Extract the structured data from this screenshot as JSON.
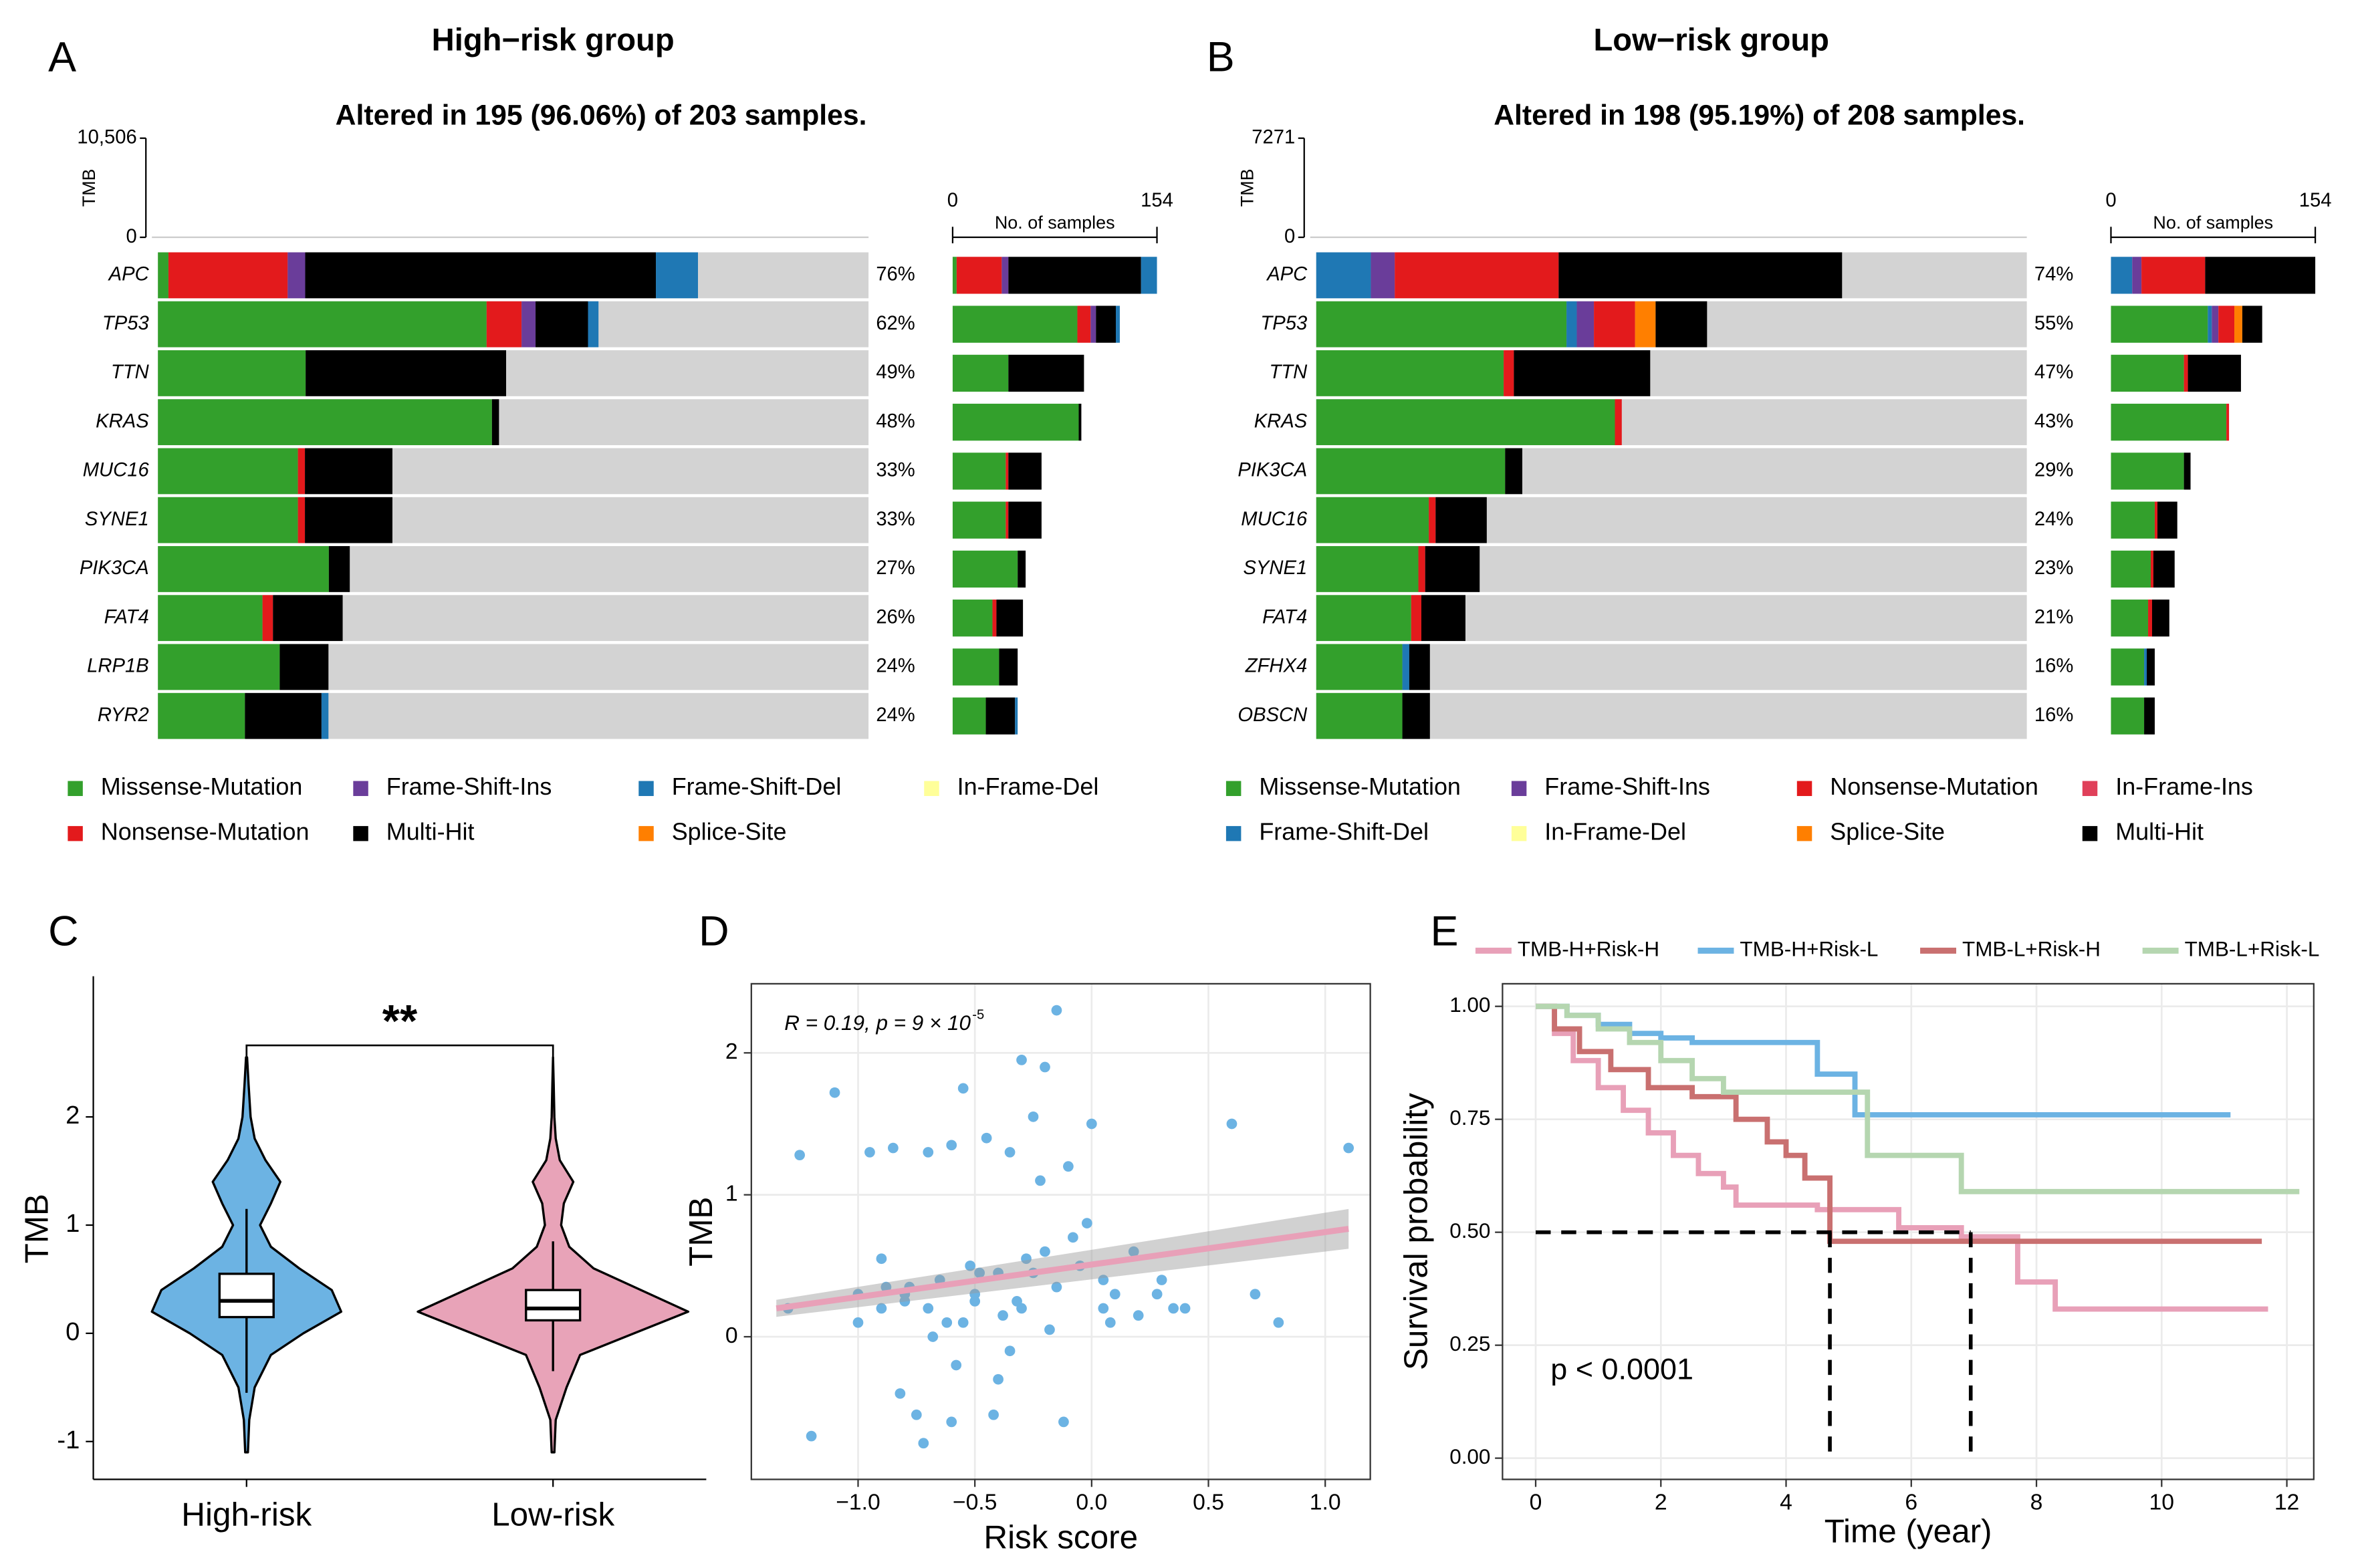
{
  "chart_data": [
    {
      "type": "oncoplot",
      "panel": "A",
      "title": "High−risk group",
      "subtitle": "Altered in 195 (96.06%) of 203 samples.",
      "tmb_label": "TMB",
      "tmb_ylim": [
        0,
        10506
      ],
      "tmb_yticks": [
        0,
        {
          "value": 10506,
          "label": "10,506"
        }
      ],
      "genes": [
        "APC",
        "TP53",
        "TTN",
        "KRAS",
        "MUC16",
        "SYNE1",
        "PIK3CA",
        "FAT4",
        "LRP1B",
        "RYR2"
      ],
      "values": [
        76,
        62,
        49,
        48,
        33,
        33,
        27,
        26,
        24,
        24
      ],
      "value_labels": [
        "76%",
        "62%",
        "49%",
        "48%",
        "33%",
        "33%",
        "27%",
        "26%",
        "24%",
        "24%"
      ],
      "bar_label": "No. of samples",
      "bar_xlim": [
        0,
        154
      ],
      "bar_xticks": [
        0,
        154
      ],
      "legend_rows": 2,
      "series": [
        {
          "name": "Missense-Mutation",
          "color": "#33a02c",
          "values": [
            3,
            94,
            42,
            95,
            40,
            40,
            49,
            30,
            35,
            25
          ]
        },
        {
          "name": "Nonsense-Mutation",
          "color": "#e31a1c",
          "values": [
            34,
            10,
            0,
            0,
            2,
            2,
            0,
            3,
            0,
            0
          ]
        },
        {
          "name": "Frame-Shift-Ins",
          "color": "#6a3d9a",
          "values": [
            5,
            4,
            0,
            0,
            0,
            0,
            0,
            0,
            0,
            0
          ]
        },
        {
          "name": "Multi-Hit",
          "color": "#000000",
          "values": [
            100,
            15,
            57,
            2,
            25,
            25,
            6,
            20,
            14,
            22
          ]
        },
        {
          "name": "Frame-Shift-Del",
          "color": "#1f78b4",
          "values": [
            12,
            3,
            0,
            0,
            0,
            0,
            0,
            0,
            0,
            2
          ]
        },
        {
          "name": "Splice-Site",
          "color": "#ff7f00",
          "values": [
            0,
            0,
            0,
            0,
            0,
            0,
            0,
            0,
            0,
            0
          ]
        },
        {
          "name": "In-Frame-Del",
          "color": "#ffff99",
          "values": [
            0,
            0,
            0,
            0,
            0,
            0,
            0,
            0,
            0,
            0
          ]
        }
      ]
    },
    {
      "type": "oncoplot",
      "panel": "B",
      "title": "Low−risk group",
      "subtitle": "Altered in 198 (95.19%) of 208 samples.",
      "tmb_label": "TMB",
      "tmb_ylim": [
        0,
        7271
      ],
      "tmb_yticks": [
        0,
        7271
      ],
      "genes": [
        "APC",
        "TP53",
        "TTN",
        "KRAS",
        "PIK3CA",
        "MUC16",
        "SYNE1",
        "FAT4",
        "ZFHX4",
        "OBSCN"
      ],
      "values": [
        74,
        55,
        47,
        43,
        29,
        24,
        23,
        21,
        16,
        16
      ],
      "value_labels": [
        "74%",
        "55%",
        "47%",
        "43%",
        "29%",
        "24%",
        "23%",
        "21%",
        "16%",
        "16%"
      ],
      "bar_label": "No. of samples",
      "bar_xlim": [
        0,
        154
      ],
      "bar_xticks": [
        0,
        154
      ],
      "legend_rows": 2,
      "series": [
        {
          "name": "Missense-Mutation",
          "color": "#33a02c",
          "values": [
            0,
            73,
            55,
            87,
            55,
            33,
            30,
            28,
            25,
            25
          ]
        },
        {
          "name": "Frame-Shift-Del",
          "color": "#1f78b4",
          "values": [
            16,
            3,
            0,
            0,
            0,
            0,
            0,
            0,
            2,
            0
          ]
        },
        {
          "name": "Frame-Shift-Ins",
          "color": "#6a3d9a",
          "values": [
            7,
            5,
            0,
            0,
            0,
            0,
            0,
            0,
            0,
            0
          ]
        },
        {
          "name": "In-Frame-Del",
          "color": "#ffff99",
          "values": [
            0,
            0,
            0,
            0,
            0,
            0,
            0,
            0,
            0,
            0
          ]
        },
        {
          "name": "Nonsense-Mutation",
          "color": "#e31a1c",
          "values": [
            48,
            12,
            3,
            2,
            0,
            2,
            2,
            3,
            0,
            0
          ]
        },
        {
          "name": "Splice-Site",
          "color": "#ff7f00",
          "values": [
            0,
            6,
            0,
            0,
            0,
            0,
            0,
            0,
            0,
            0
          ]
        },
        {
          "name": "In-Frame-Ins",
          "color": "#e0405a",
          "values": [
            0,
            0,
            0,
            0,
            0,
            0,
            0,
            0,
            0,
            0
          ]
        },
        {
          "name": "Multi-Hit",
          "color": "#000000",
          "values": [
            83,
            15,
            40,
            0,
            5,
            15,
            16,
            13,
            6,
            8
          ]
        }
      ]
    },
    {
      "type": "violin",
      "panel": "C",
      "ylabel": "TMB",
      "annotation": "**",
      "categories": [
        "High-risk",
        "Low-risk"
      ],
      "colors": [
        "#6cb3e3",
        "#e8a3b8"
      ],
      "ylim": [
        -1.35,
        3.3
      ],
      "yticks": [
        -1,
        0,
        1,
        2
      ],
      "q1": [
        0.15,
        0.12
      ],
      "median": [
        0.3,
        0.23
      ],
      "q3": [
        0.55,
        0.4
      ],
      "whisker_low": [
        -0.55,
        -0.35
      ],
      "whisker_high": [
        1.15,
        0.85
      ],
      "density_y": [
        -1.1,
        -0.8,
        -0.5,
        -0.2,
        0,
        0.2,
        0.4,
        0.6,
        0.8,
        1.0,
        1.2,
        1.4,
        1.6,
        1.8,
        2.0,
        2.3,
        2.55
      ],
      "density": [
        [
          0.01,
          0.02,
          0.06,
          0.18,
          0.42,
          0.7,
          0.63,
          0.39,
          0.18,
          0.1,
          0.18,
          0.25,
          0.14,
          0.06,
          0.03,
          0.015,
          0.004
        ],
        [
          0.01,
          0.02,
          0.1,
          0.2,
          0.6,
          1.0,
          0.65,
          0.3,
          0.12,
          0.06,
          0.08,
          0.15,
          0.05,
          0.02,
          0.01,
          0.005,
          0
        ]
      ]
    },
    {
      "type": "scatter",
      "panel": "D",
      "xlabel": "Risk score",
      "ylabel": "TMB",
      "annotation": "R = 0.19, p = 9 × 10",
      "annotation_sup": "-5",
      "color": "#6cb3e3",
      "fit_color": "#e8a0b8",
      "xlim": [
        -1.457,
        1.193
      ],
      "ylim": [
        -1.005,
        2.487
      ],
      "xticks": [
        {
          "value": -1.0,
          "label": "−1.0"
        },
        {
          "value": -0.5,
          "label": "−0.5"
        },
        {
          "value": 0.0,
          "label": "0.0"
        },
        {
          "value": 0.5,
          "label": "0.5"
        },
        {
          "value": 1.0,
          "label": "1.0"
        }
      ],
      "yticks": [
        0,
        1,
        2
      ],
      "x": [
        -1.25,
        -1.1,
        -1.0,
        -0.95,
        -0.9,
        -0.85,
        -0.8,
        -0.75,
        -0.7,
        -0.65,
        -0.6,
        -0.55,
        -0.5,
        -0.45,
        -0.4,
        -0.35,
        -0.3,
        -0.25,
        -0.2,
        -0.15,
        -0.1,
        -0.05,
        0,
        0.05,
        0.1,
        0.2,
        0.3,
        0.4,
        0.6,
        0.7,
        0.8,
        1.1,
        -1.3,
        -1.2,
        -0.88,
        -0.82,
        -0.72,
        -0.62,
        -0.52,
        -0.42,
        -0.32,
        -0.22,
        -0.12,
        -0.02,
        0.08,
        0.18,
        0.28,
        -0.78,
        -0.68,
        -0.58,
        -0.48,
        -0.38,
        -0.28,
        -0.18,
        -0.08,
        -0.15,
        -0.3,
        -0.55,
        -0.8,
        -0.9,
        -1.0,
        -0.6,
        -0.4,
        -0.2,
        0.05,
        0.35,
        -0.7,
        -0.5,
        -0.35,
        -0.25
      ],
      "values": [
        1.28,
        1.72,
        0.3,
        1.3,
        0.2,
        1.33,
        0.25,
        -0.55,
        1.3,
        0.4,
        1.35,
        0.1,
        0.3,
        1.4,
        0.45,
        1.3,
        0.2,
        1.55,
        1.9,
        0.35,
        1.2,
        0.5,
        1.5,
        0.2,
        0.3,
        0.15,
        0.4,
        0.2,
        1.5,
        0.3,
        0.1,
        1.33,
        0.2,
        -0.7,
        0.35,
        -0.4,
        -0.75,
        0.1,
        0.5,
        -0.55,
        0.25,
        1.1,
        -0.6,
        0.8,
        0.1,
        0.6,
        0.3,
        0.35,
        0.0,
        -0.2,
        0.45,
        0.15,
        0.55,
        0.05,
        0.7,
        2.3,
        1.95,
        1.75,
        0.3,
        0.55,
        0.1,
        -0.6,
        -0.3,
        0.6,
        0.4,
        0.2,
        0.2,
        0.25,
        -0.1,
        0.45
      ],
      "fit_x": [
        -1.35,
        1.1
      ],
      "fit_y": [
        0.2,
        0.76
      ],
      "fit_ci": [
        0.06,
        0.14
      ]
    },
    {
      "type": "km",
      "panel": "E",
      "xlabel": "Time (year)",
      "ylabel": "Survival probability",
      "annotation": "p < 0.0001",
      "xlim": [
        -0.53,
        12.43
      ],
      "ylim": [
        -0.047,
        1.05
      ],
      "xticks": [
        0,
        2,
        4,
        6,
        8,
        10,
        12
      ],
      "yticks": [
        {
          "value": 0,
          "label": "0.00"
        },
        {
          "value": 0.25,
          "label": "0.25"
        },
        {
          "value": 0.5,
          "label": "0.50"
        },
        {
          "value": 0.75,
          "label": "0.75"
        },
        {
          "value": 1,
          "label": "1.00"
        }
      ],
      "median_x": [
        4.7,
        6.95
      ],
      "median_y": 0.5,
      "series": [
        {
          "name": "TMB-H+Risk-H",
          "color": "#e8a0b8",
          "x": [
            0,
            0.3,
            0.6,
            1.0,
            1.4,
            1.8,
            2.2,
            2.6,
            3.0,
            3.2,
            4.5,
            5.8,
            6.8,
            7.7,
            8.3,
            11.7
          ],
          "values": [
            1,
            0.94,
            0.88,
            0.82,
            0.77,
            0.72,
            0.67,
            0.63,
            0.6,
            0.56,
            0.55,
            0.51,
            0.49,
            0.39,
            0.33,
            0.33
          ]
        },
        {
          "name": "TMB-H+Risk-L",
          "color": "#6cb3e3",
          "x": [
            0,
            0.5,
            1.0,
            1.5,
            2.0,
            2.5,
            3.5,
            4.5,
            5.0,
            5.1,
            11.1
          ],
          "values": [
            1,
            0.98,
            0.96,
            0.94,
            0.93,
            0.92,
            0.92,
            0.85,
            0.85,
            0.76,
            0.76
          ]
        },
        {
          "name": "TMB-L+Risk-H",
          "color": "#c97070",
          "x": [
            0,
            0.3,
            0.7,
            1.2,
            1.8,
            2.5,
            3.2,
            3.7,
            4.0,
            4.3,
            4.7,
            6.0,
            7.0,
            11.6
          ],
          "values": [
            1,
            0.95,
            0.9,
            0.86,
            0.82,
            0.8,
            0.75,
            0.7,
            0.67,
            0.62,
            0.48,
            0.48,
            0.48,
            0.48
          ]
        },
        {
          "name": "TMB-L+Risk-L",
          "color": "#b5d6b0",
          "x": [
            0,
            0.5,
            1.0,
            1.5,
            2.0,
            2.5,
            3.0,
            4.5,
            5.3,
            6.8,
            12.2
          ],
          "values": [
            1,
            0.98,
            0.95,
            0.92,
            0.88,
            0.84,
            0.81,
            0.81,
            0.67,
            0.59,
            0.59
          ]
        }
      ]
    }
  ]
}
